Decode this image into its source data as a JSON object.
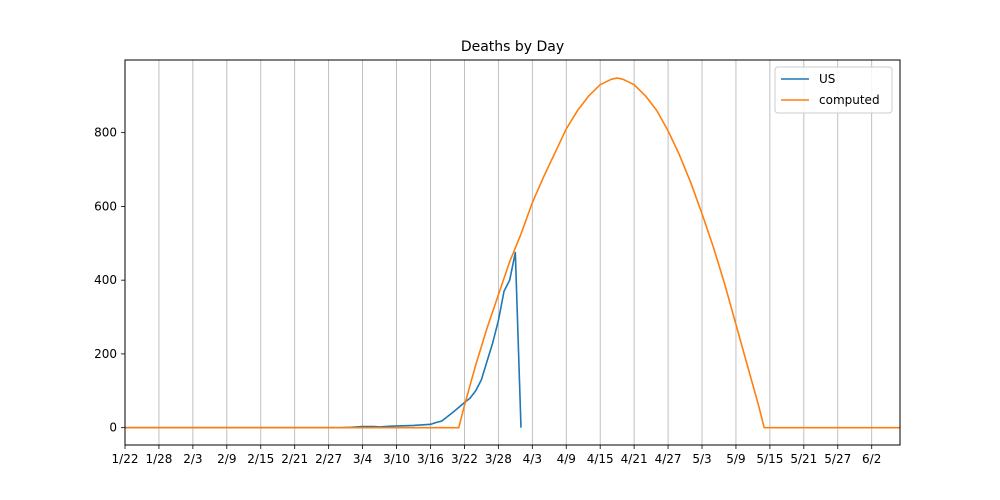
{
  "chart_data": {
    "type": "line",
    "title": "Deaths by Day",
    "xlabel": "",
    "ylabel": "",
    "x_ticks": [
      {
        "day": 0,
        "label": "1/22"
      },
      {
        "day": 6,
        "label": "1/28"
      },
      {
        "day": 12,
        "label": "2/3"
      },
      {
        "day": 18,
        "label": "2/9"
      },
      {
        "day": 24,
        "label": "2/15"
      },
      {
        "day": 30,
        "label": "2/21"
      },
      {
        "day": 36,
        "label": "2/27"
      },
      {
        "day": 42,
        "label": "3/4"
      },
      {
        "day": 48,
        "label": "3/10"
      },
      {
        "day": 54,
        "label": "3/16"
      },
      {
        "day": 60,
        "label": "3/22"
      },
      {
        "day": 66,
        "label": "3/28"
      },
      {
        "day": 72,
        "label": "4/3"
      },
      {
        "day": 78,
        "label": "4/9"
      },
      {
        "day": 84,
        "label": "4/15"
      },
      {
        "day": 90,
        "label": "4/21"
      },
      {
        "day": 96,
        "label": "4/27"
      },
      {
        "day": 102,
        "label": "5/3"
      },
      {
        "day": 108,
        "label": "5/9"
      },
      {
        "day": 114,
        "label": "5/15"
      },
      {
        "day": 120,
        "label": "5/21"
      },
      {
        "day": 126,
        "label": "5/27"
      },
      {
        "day": 132,
        "label": "6/2"
      }
    ],
    "xlim": [
      0,
      137
    ],
    "ylim": [
      -47,
      997
    ],
    "y_ticks": [
      0,
      200,
      400,
      600,
      800
    ],
    "grid": "vertical",
    "legend_position": "upper right",
    "series": [
      {
        "name": "US",
        "color": "#1f77b4",
        "points": [
          [
            0,
            0
          ],
          [
            10,
            0
          ],
          [
            20,
            0
          ],
          [
            30,
            0
          ],
          [
            38,
            0
          ],
          [
            40,
            1
          ],
          [
            42,
            3
          ],
          [
            44,
            3
          ],
          [
            45,
            2
          ],
          [
            47,
            4
          ],
          [
            49,
            5
          ],
          [
            51,
            6
          ],
          [
            53,
            8
          ],
          [
            54,
            9
          ],
          [
            55,
            14
          ],
          [
            56,
            18
          ],
          [
            57,
            30
          ],
          [
            58,
            42
          ],
          [
            59,
            55
          ],
          [
            60,
            68
          ],
          [
            61,
            80
          ],
          [
            62,
            100
          ],
          [
            63,
            130
          ],
          [
            64,
            180
          ],
          [
            65,
            230
          ],
          [
            66,
            290
          ],
          [
            67,
            370
          ],
          [
            68,
            400
          ],
          [
            69,
            475
          ],
          [
            70,
            0
          ]
        ]
      },
      {
        "name": "computed",
        "color": "#ff7f0e",
        "points": [
          [
            0,
            0
          ],
          [
            59,
            0
          ],
          [
            60,
            60
          ],
          [
            62,
            170
          ],
          [
            64,
            270
          ],
          [
            66,
            360
          ],
          [
            68,
            450
          ],
          [
            70,
            525
          ],
          [
            72,
            610
          ],
          [
            74,
            680
          ],
          [
            76,
            745
          ],
          [
            78,
            810
          ],
          [
            80,
            860
          ],
          [
            82,
            900
          ],
          [
            84,
            930
          ],
          [
            86,
            945
          ],
          [
            87,
            948
          ],
          [
            88,
            945
          ],
          [
            90,
            930
          ],
          [
            92,
            900
          ],
          [
            94,
            860
          ],
          [
            96,
            805
          ],
          [
            98,
            740
          ],
          [
            100,
            665
          ],
          [
            102,
            580
          ],
          [
            104,
            490
          ],
          [
            106,
            390
          ],
          [
            108,
            280
          ],
          [
            110,
            170
          ],
          [
            112,
            60
          ],
          [
            113,
            0
          ],
          [
            137,
            0
          ]
        ]
      }
    ]
  }
}
